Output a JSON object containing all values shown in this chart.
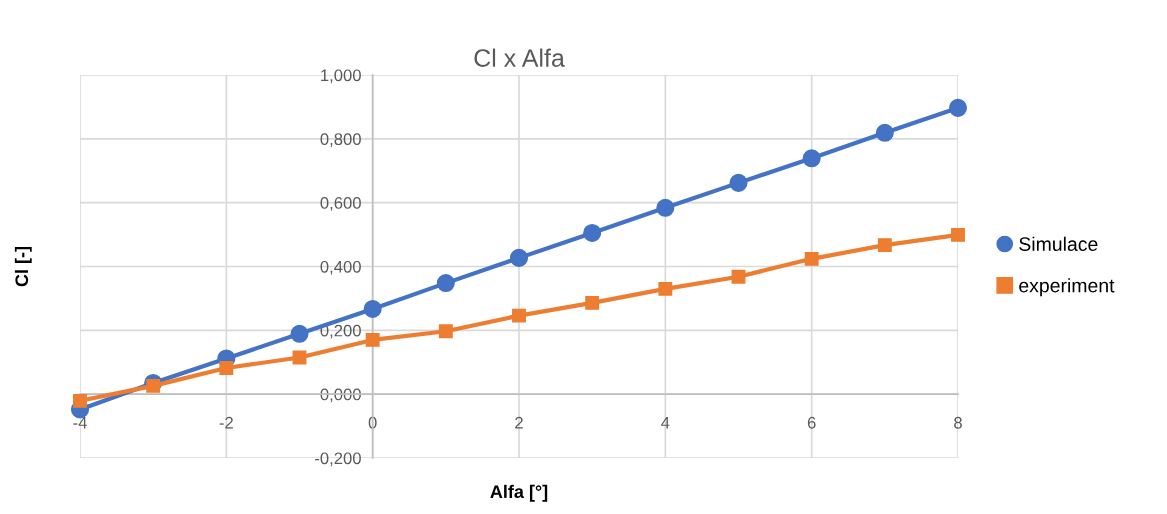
{
  "chart_data": {
    "type": "line",
    "title": "Cl x Alfa",
    "xlabel": "Alfa [°]",
    "ylabel": "Cl [-]",
    "x": [
      -4,
      -3,
      -2,
      -1,
      0,
      1,
      2,
      3,
      4,
      5,
      6,
      7,
      8
    ],
    "series": [
      {
        "name": "Simulace",
        "color": "#4472c4",
        "marker": "circle",
        "values": [
          -0.048,
          0.035,
          0.112,
          0.189,
          0.267,
          0.348,
          0.427,
          0.505,
          0.584,
          0.662,
          0.739,
          0.819,
          0.897
        ]
      },
      {
        "name": "experiment",
        "color": "#ed7d31",
        "marker": "square",
        "values": [
          -0.021,
          0.026,
          0.082,
          0.115,
          0.17,
          0.197,
          0.246,
          0.286,
          0.33,
          0.368,
          0.424,
          0.467,
          0.499
        ]
      }
    ],
    "xlim": [
      -4,
      8
    ],
    "xticks": [
      -4,
      -2,
      0,
      2,
      4,
      6,
      8
    ],
    "ylim": [
      -0.2,
      1.0
    ],
    "yticks": [
      {
        "value": -0.2,
        "label": "-0,200"
      },
      {
        "value": 0,
        "label": "0,000"
      },
      {
        "value": 0.2,
        "label": "0,200"
      },
      {
        "value": 0.4,
        "label": "0,400"
      },
      {
        "value": 0.6,
        "label": "0,600"
      },
      {
        "value": 0.8,
        "label": "0,800"
      },
      {
        "value": 1.0,
        "label": "1,000"
      }
    ],
    "grid": true,
    "legend": "right",
    "line_style": "solid"
  }
}
